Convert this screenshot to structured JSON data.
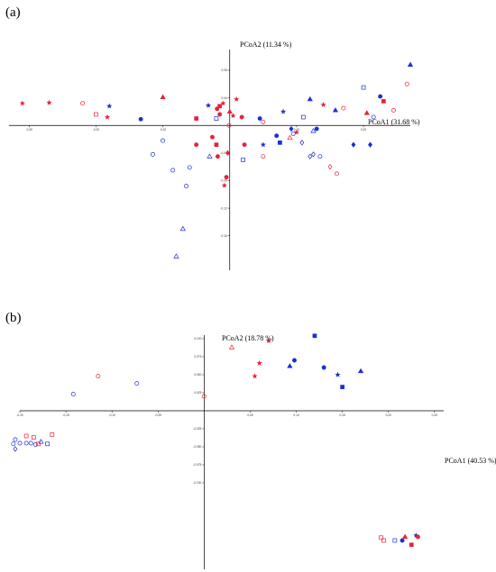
{
  "chart_data": [
    {
      "panel_label": "(a)",
      "type": "scatter",
      "xlabel": "PCoA1 (31.68 %)",
      "ylabel": "PCoA2 (11.34 %)",
      "xlim": [
        -0.33,
        0.27
      ],
      "ylim": [
        -0.21,
        0.11
      ],
      "grid": false,
      "x_ticks": [
        {
          "value": -0.3,
          "label": "-0.30"
        },
        {
          "value": -0.2,
          "label": "-0.20"
        },
        {
          "value": -0.1,
          "label": "-0.10"
        },
        {
          "value": 0.1,
          "label": "0.10"
        },
        {
          "value": 0.2,
          "label": "0.20"
        }
      ],
      "y_ticks": [
        {
          "value": 0.08,
          "label": "0.08"
        },
        {
          "value": 0.04,
          "label": "0.04"
        },
        {
          "value": -0.04,
          "label": "-0.04"
        },
        {
          "value": -0.08,
          "label": "-0.08"
        },
        {
          "value": -0.12,
          "label": "-0.12"
        },
        {
          "value": -0.16,
          "label": "-0.16"
        }
      ],
      "points": [
        {
          "x": -0.31,
          "y": 0.032,
          "marker": "star",
          "color": "red",
          "filled": true
        },
        {
          "x": -0.27,
          "y": 0.033,
          "marker": "star",
          "color": "red",
          "filled": true
        },
        {
          "x": -0.22,
          "y": 0.032,
          "marker": "circle",
          "color": "red",
          "filled": false
        },
        {
          "x": -0.2,
          "y": 0.016,
          "marker": "square",
          "color": "red",
          "filled": false
        },
        {
          "x": -0.183,
          "y": 0.012,
          "marker": "star",
          "color": "red",
          "filled": true
        },
        {
          "x": -0.18,
          "y": 0.028,
          "marker": "star",
          "color": "blue",
          "filled": true
        },
        {
          "x": -0.133,
          "y": 0.009,
          "marker": "circle",
          "color": "blue",
          "filled": true
        },
        {
          "x": -0.1,
          "y": 0.041,
          "marker": "triangle",
          "color": "red",
          "filled": true
        },
        {
          "x": -0.1,
          "y": -0.022,
          "marker": "circle",
          "color": "blue",
          "filled": false
        },
        {
          "x": -0.032,
          "y": 0.029,
          "marker": "star",
          "color": "blue",
          "filled": true
        },
        {
          "x": -0.05,
          "y": 0.01,
          "marker": "square",
          "color": "red",
          "filled": true
        },
        {
          "x": -0.01,
          "y": 0.032,
          "marker": "star",
          "color": "red",
          "filled": true
        },
        {
          "x": 0.01,
          "y": 0.038,
          "marker": "star",
          "color": "red",
          "filled": true
        },
        {
          "x": -0.015,
          "y": 0.028,
          "marker": "square",
          "color": "red",
          "filled": true
        },
        {
          "x": -0.019,
          "y": 0.024,
          "marker": "circle",
          "color": "red",
          "filled": true
        },
        {
          "x": -0.02,
          "y": 0.01,
          "marker": "square",
          "color": "blue",
          "filled": false
        },
        {
          "x": -0.026,
          "y": -0.017,
          "marker": "circle",
          "color": "red",
          "filled": true
        },
        {
          "x": -0.015,
          "y": 0.016,
          "marker": "circle",
          "color": "red",
          "filled": true
        },
        {
          "x": 0.0,
          "y": 0.02,
          "marker": "triangle",
          "color": "red",
          "filled": true
        },
        {
          "x": 0.005,
          "y": 0.014,
          "marker": "star",
          "color": "red",
          "filled": true
        },
        {
          "x": 0.018,
          "y": 0.012,
          "marker": "circle",
          "color": "red",
          "filled": true
        },
        {
          "x": -0.001,
          "y": 0.0,
          "marker": "circle",
          "color": "red",
          "filled": false
        },
        {
          "x": -0.05,
          "y": -0.028,
          "marker": "circle",
          "color": "red",
          "filled": true
        },
        {
          "x": -0.02,
          "y": -0.028,
          "marker": "square",
          "color": "red",
          "filled": true
        },
        {
          "x": -0.018,
          "y": -0.045,
          "marker": "circle",
          "color": "red",
          "filled": true
        },
        {
          "x": -0.003,
          "y": -0.04,
          "marker": "diamond",
          "color": "red",
          "filled": true
        },
        {
          "x": -0.005,
          "y": -0.075,
          "marker": "circle",
          "color": "red",
          "filled": true
        },
        {
          "x": -0.008,
          "y": -0.087,
          "marker": "star",
          "color": "red",
          "filled": true
        },
        {
          "x": 0.022,
          "y": -0.028,
          "marker": "circle",
          "color": "red",
          "filled": true
        },
        {
          "x": -0.06,
          "y": -0.061,
          "marker": "circle",
          "color": "blue",
          "filled": false
        },
        {
          "x": -0.115,
          "y": -0.042,
          "marker": "circle",
          "color": "blue",
          "filled": false
        },
        {
          "x": -0.085,
          "y": -0.065,
          "marker": "circle",
          "color": "blue",
          "filled": false
        },
        {
          "x": -0.07,
          "y": -0.15,
          "marker": "triangle",
          "color": "blue",
          "filled": false
        },
        {
          "x": -0.065,
          "y": -0.088,
          "marker": "circle",
          "color": "blue",
          "filled": false
        },
        {
          "x": 0.02,
          "y": -0.05,
          "marker": "square",
          "color": "blue",
          "filled": false
        },
        {
          "x": -0.03,
          "y": -0.045,
          "marker": "triangle",
          "color": "blue",
          "filled": false
        },
        {
          "x": 0.05,
          "y": -0.045,
          "marker": "circle",
          "color": "red",
          "filled": false
        },
        {
          "x": 0.05,
          "y": 0.005,
          "marker": "circle",
          "color": "red",
          "filled": false
        },
        {
          "x": 0.045,
          "y": 0.01,
          "marker": "circle",
          "color": "blue",
          "filled": true
        },
        {
          "x": 0.08,
          "y": 0.02,
          "marker": "star",
          "color": "blue",
          "filled": true
        },
        {
          "x": 0.092,
          "y": -0.005,
          "marker": "diamond",
          "color": "blue",
          "filled": true
        },
        {
          "x": 0.11,
          "y": 0.012,
          "marker": "square",
          "color": "blue",
          "filled": false
        },
        {
          "x": 0.12,
          "y": 0.038,
          "marker": "triangle",
          "color": "blue",
          "filled": true
        },
        {
          "x": 0.125,
          "y": -0.008,
          "marker": "triangle",
          "color": "blue",
          "filled": false
        },
        {
          "x": 0.13,
          "y": -0.005,
          "marker": "circle",
          "color": "blue",
          "filled": true
        },
        {
          "x": 0.14,
          "y": 0.03,
          "marker": "star",
          "color": "red",
          "filled": true
        },
        {
          "x": 0.158,
          "y": 0.022,
          "marker": "triangle",
          "color": "blue",
          "filled": true
        },
        {
          "x": 0.17,
          "y": 0.025,
          "marker": "circle",
          "color": "red",
          "filled": false
        },
        {
          "x": 0.205,
          "y": 0.018,
          "marker": "triangle",
          "color": "red",
          "filled": true
        },
        {
          "x": 0.225,
          "y": 0.042,
          "marker": "circle",
          "color": "blue",
          "filled": true
        },
        {
          "x": 0.2,
          "y": 0.055,
          "marker": "square",
          "color": "blue",
          "filled": false
        },
        {
          "x": 0.215,
          "y": 0.012,
          "marker": "circle",
          "color": "blue",
          "filled": false
        },
        {
          "x": 0.23,
          "y": 0.035,
          "marker": "square",
          "color": "red",
          "filled": true
        },
        {
          "x": 0.265,
          "y": 0.06,
          "marker": "circle",
          "color": "red",
          "filled": false
        },
        {
          "x": 0.27,
          "y": 0.088,
          "marker": "triangle",
          "color": "blue",
          "filled": true
        },
        {
          "x": 0.245,
          "y": 0.022,
          "marker": "circle",
          "color": "red",
          "filled": false
        },
        {
          "x": 0.07,
          "y": -0.015,
          "marker": "circle",
          "color": "blue",
          "filled": true
        },
        {
          "x": 0.075,
          "y": -0.025,
          "marker": "square",
          "color": "blue",
          "filled": true
        },
        {
          "x": 0.09,
          "y": -0.018,
          "marker": "triangle",
          "color": "red",
          "filled": false
        },
        {
          "x": 0.095,
          "y": -0.012,
          "marker": "circle",
          "color": "blue",
          "filled": false
        },
        {
          "x": 0.1,
          "y": -0.01,
          "marker": "star",
          "color": "red",
          "filled": true
        },
        {
          "x": 0.108,
          "y": -0.025,
          "marker": "diamond",
          "color": "blue",
          "filled": false
        },
        {
          "x": 0.12,
          "y": -0.045,
          "marker": "diamond",
          "color": "blue",
          "filled": false
        },
        {
          "x": 0.125,
          "y": -0.042,
          "marker": "diamond",
          "color": "blue",
          "filled": false
        },
        {
          "x": 0.135,
          "y": -0.045,
          "marker": "circle",
          "color": "blue",
          "filled": false
        },
        {
          "x": 0.15,
          "y": -0.06,
          "marker": "diamond",
          "color": "red",
          "filled": false
        },
        {
          "x": 0.16,
          "y": -0.07,
          "marker": "circle",
          "color": "red",
          "filled": false
        },
        {
          "x": 0.185,
          "y": -0.028,
          "marker": "diamond",
          "color": "blue",
          "filled": true
        },
        {
          "x": 0.21,
          "y": -0.028,
          "marker": "diamond",
          "color": "blue",
          "filled": true
        },
        {
          "x": 0.05,
          "y": -0.028,
          "marker": "star",
          "color": "blue",
          "filled": true
        },
        {
          "x": -0.08,
          "y": -0.19,
          "marker": "triangle",
          "color": "blue",
          "filled": false
        }
      ]
    },
    {
      "panel_label": "(b)",
      "type": "scatter",
      "xlabel": "PCoA1 (40.53 %)",
      "ylabel": "PCoA2 (18.78 %)",
      "xlim": [
        -0.2,
        0.26
      ],
      "ylim": [
        -0.22,
        0.105
      ],
      "grid": false,
      "x_ticks": [
        {
          "value": -0.2,
          "label": "-0.20"
        },
        {
          "value": -0.15,
          "label": "-0.15"
        },
        {
          "value": -0.1,
          "label": "-0.10"
        },
        {
          "value": -0.05,
          "label": "-0.05"
        },
        {
          "value": 0.05,
          "label": "0.05"
        },
        {
          "value": 0.1,
          "label": "0.10"
        },
        {
          "value": 0.15,
          "label": "0.15"
        },
        {
          "value": 0.2,
          "label": "0.20"
        },
        {
          "value": 0.25,
          "label": "0.25"
        }
      ],
      "y_ticks": [
        {
          "value": 0.1,
          "label": "0.100"
        },
        {
          "value": 0.075,
          "label": "0.075"
        },
        {
          "value": 0.05,
          "label": "0.050"
        },
        {
          "value": 0.025,
          "label": "0.025"
        },
        {
          "value": -0.025,
          "label": "-0.025"
        },
        {
          "value": -0.05,
          "label": "-0.050"
        },
        {
          "value": -0.075,
          "label": "-0.075"
        },
        {
          "value": -0.1,
          "label": "-0.100"
        }
      ],
      "points": [
        {
          "x": -0.207,
          "y": -0.046,
          "marker": "circle",
          "color": "blue",
          "filled": false
        },
        {
          "x": -0.2,
          "y": -0.045,
          "marker": "circle",
          "color": "blue",
          "filled": false
        },
        {
          "x": -0.193,
          "y": -0.035,
          "marker": "square",
          "color": "red",
          "filled": false
        },
        {
          "x": -0.188,
          "y": -0.045,
          "marker": "circle",
          "color": "blue",
          "filled": false
        },
        {
          "x": -0.183,
          "y": -0.047,
          "marker": "circle",
          "color": "blue",
          "filled": false
        },
        {
          "x": -0.18,
          "y": -0.046,
          "marker": "square",
          "color": "red",
          "filled": false
        },
        {
          "x": -0.177,
          "y": -0.043,
          "marker": "triangle",
          "color": "blue",
          "filled": false
        },
        {
          "x": -0.17,
          "y": -0.046,
          "marker": "square",
          "color": "blue",
          "filled": false
        },
        {
          "x": -0.205,
          "y": -0.053,
          "marker": "diamond",
          "color": "blue",
          "filled": false
        },
        {
          "x": -0.193,
          "y": -0.045,
          "marker": "circle",
          "color": "blue",
          "filled": false
        },
        {
          "x": -0.185,
          "y": -0.037,
          "marker": "square",
          "color": "red",
          "filled": false
        },
        {
          "x": -0.205,
          "y": -0.04,
          "marker": "circle",
          "color": "blue",
          "filled": false
        },
        {
          "x": -0.165,
          "y": -0.033,
          "marker": "square",
          "color": "red",
          "filled": false
        },
        {
          "x": -0.142,
          "y": 0.023,
          "marker": "circle",
          "color": "blue",
          "filled": false
        },
        {
          "x": -0.115,
          "y": 0.048,
          "marker": "circle",
          "color": "red",
          "filled": false
        },
        {
          "x": -0.073,
          "y": 0.038,
          "marker": "circle",
          "color": "blue",
          "filled": false
        },
        {
          "x": 0.0,
          "y": 0.02,
          "marker": "circle",
          "color": "red",
          "filled": false
        },
        {
          "x": 0.03,
          "y": 0.088,
          "marker": "triangle",
          "color": "red",
          "filled": false
        },
        {
          "x": 0.06,
          "y": 0.066,
          "marker": "star",
          "color": "red",
          "filled": true
        },
        {
          "x": 0.055,
          "y": 0.048,
          "marker": "star",
          "color": "red",
          "filled": true
        },
        {
          "x": 0.07,
          "y": 0.097,
          "marker": "star",
          "color": "red",
          "filled": true
        },
        {
          "x": 0.093,
          "y": 0.062,
          "marker": "triangle",
          "color": "blue",
          "filled": true
        },
        {
          "x": 0.098,
          "y": 0.07,
          "marker": "circle",
          "color": "blue",
          "filled": true
        },
        {
          "x": 0.12,
          "y": 0.104,
          "marker": "square",
          "color": "blue",
          "filled": true
        },
        {
          "x": 0.13,
          "y": 0.06,
          "marker": "circle",
          "color": "blue",
          "filled": true
        },
        {
          "x": 0.145,
          "y": 0.05,
          "marker": "star",
          "color": "blue",
          "filled": true
        },
        {
          "x": 0.15,
          "y": 0.033,
          "marker": "square",
          "color": "blue",
          "filled": true
        },
        {
          "x": 0.17,
          "y": 0.055,
          "marker": "triangle",
          "color": "blue",
          "filled": true
        },
        {
          "x": 0.192,
          "y": -0.176,
          "marker": "square",
          "color": "red",
          "filled": false
        },
        {
          "x": 0.195,
          "y": -0.18,
          "marker": "square",
          "color": "red",
          "filled": false
        },
        {
          "x": 0.207,
          "y": -0.18,
          "marker": "square",
          "color": "blue",
          "filled": false
        },
        {
          "x": 0.215,
          "y": -0.18,
          "marker": "circle",
          "color": "blue",
          "filled": true
        },
        {
          "x": 0.218,
          "y": -0.175,
          "marker": "triangle",
          "color": "red",
          "filled": true
        },
        {
          "x": 0.225,
          "y": -0.186,
          "marker": "square",
          "color": "red",
          "filled": true
        },
        {
          "x": 0.23,
          "y": -0.173,
          "marker": "star",
          "color": "blue",
          "filled": true
        },
        {
          "x": 0.232,
          "y": -0.175,
          "marker": "circle",
          "color": "red",
          "filled": true
        }
      ]
    }
  ]
}
